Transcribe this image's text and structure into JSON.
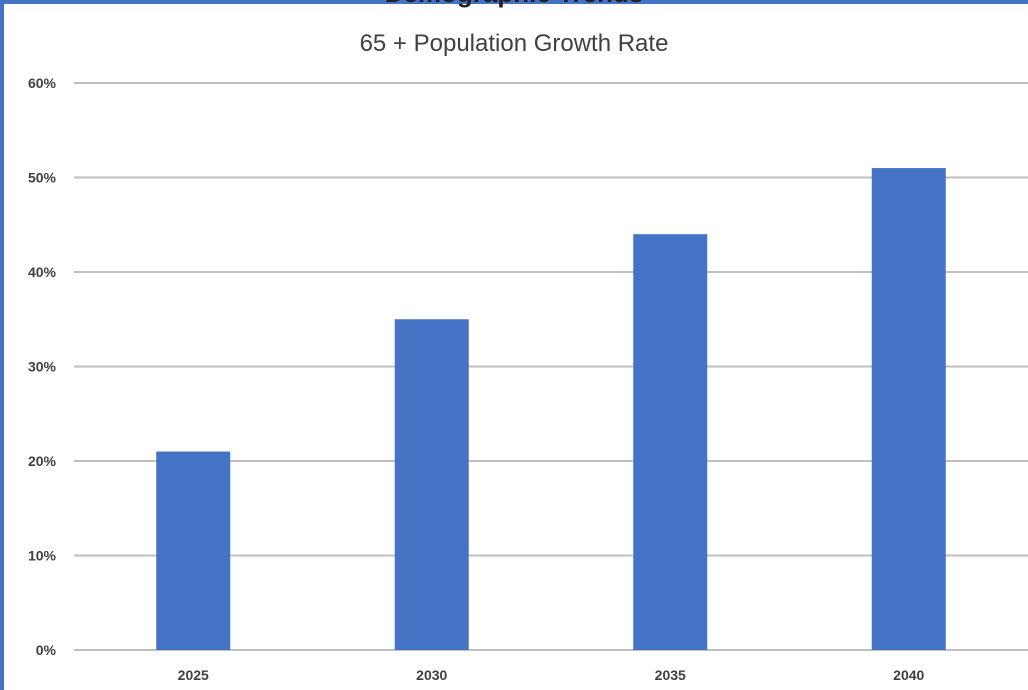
{
  "page": {
    "cut_heading": "Demographic Trends"
  },
  "chart_data": {
    "type": "bar",
    "title": "65 + Population Growth Rate",
    "xlabel": "",
    "ylabel": "",
    "categories": [
      "2025",
      "2030",
      "2035",
      "2040"
    ],
    "values": [
      21,
      35,
      44,
      51
    ],
    "ylim": [
      0,
      60
    ],
    "yticks": [
      "0%",
      "10%",
      "20%",
      "30%",
      "40%",
      "50%",
      "60%"
    ],
    "grid": true,
    "legend": "none",
    "colors": {
      "bar": "#4472c4",
      "grid": "#bfbfbf",
      "border": "#4472c4"
    }
  }
}
